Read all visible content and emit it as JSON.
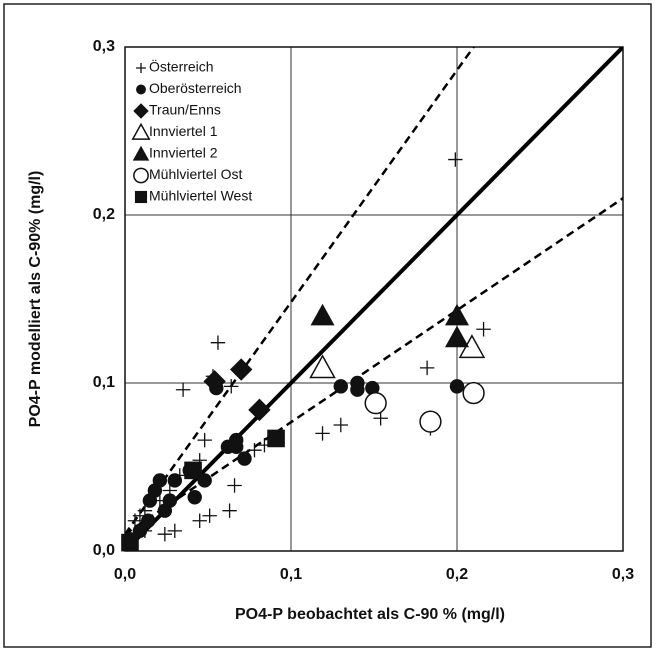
{
  "chart_data": {
    "type": "scatter",
    "x_label": "PO4-P beobachtet als C-90 % (mg/l)",
    "y_label": "PO4-P modelliert als C-90% (mg/l)",
    "xlim": [
      0,
      0.3
    ],
    "ylim": [
      0,
      0.3
    ],
    "xticks": [
      {
        "value": 0,
        "label": "0,0"
      },
      {
        "value": 0.1,
        "label": "0,1"
      },
      {
        "value": 0.2,
        "label": "0,2"
      },
      {
        "value": 0.3,
        "label": "0,3"
      }
    ],
    "yticks": [
      {
        "value": 0,
        "label": "0,0"
      },
      {
        "value": 0.1,
        "label": "0,1"
      },
      {
        "value": 0.2,
        "label": "0,2"
      },
      {
        "value": 0.3,
        "label": "0,3"
      }
    ],
    "grid": true,
    "legend": "upper left",
    "reference_lines": [
      {
        "x": [
          0,
          0.3
        ],
        "y": [
          0,
          0.3
        ],
        "style": "solid"
      },
      {
        "x": [
          0,
          0.21
        ],
        "y": [
          0.01,
          0.3
        ],
        "style": "dashed"
      },
      {
        "x": [
          0,
          0.3
        ],
        "y": [
          0.01,
          0.21
        ],
        "style": "dashed"
      }
    ],
    "series": [
      {
        "name": "Österreich",
        "marker": "plus",
        "color": "#111",
        "x": [
          0.199,
          0.216,
          0.035,
          0.056,
          0.053,
          0.064,
          0.119,
          0.13,
          0.154,
          0.182,
          0.184,
          0.006,
          0.009,
          0.012,
          0.021,
          0.027,
          0.033,
          0.012,
          0.024,
          0.03,
          0.045,
          0.051,
          0.063,
          0.066,
          0.078,
          0.081,
          0.045,
          0.048,
          0.084
        ],
        "values": [
          0.233,
          0.132,
          0.096,
          0.124,
          0.104,
          0.098,
          0.07,
          0.075,
          0.079,
          0.109,
          0.073,
          0.018,
          0.021,
          0.024,
          0.03,
          0.036,
          0.045,
          0.012,
          0.01,
          0.012,
          0.018,
          0.021,
          0.024,
          0.039,
          0.06,
          0.084,
          0.054,
          0.066,
          0.063
        ]
      },
      {
        "name": "Oberösterreich",
        "marker": "circle",
        "color": "#111",
        "x": [
          0.003,
          0.009,
          0.014,
          0.015,
          0.018,
          0.021,
          0.024,
          0.027,
          0.03,
          0.039,
          0.042,
          0.048,
          0.055,
          0.062,
          0.067,
          0.072,
          0.067,
          0.13,
          0.14,
          0.14,
          0.149,
          0.2
        ],
        "values": [
          0.007,
          0.012,
          0.018,
          0.03,
          0.036,
          0.042,
          0.024,
          0.03,
          0.042,
          0.048,
          0.032,
          0.042,
          0.097,
          0.062,
          0.062,
          0.055,
          0.066,
          0.098,
          0.1,
          0.096,
          0.097,
          0.098
        ]
      },
      {
        "name": "Traun/Enns",
        "marker": "diamond",
        "color": "#111",
        "x": [
          0.054,
          0.07,
          0.081
        ],
        "values": [
          0.101,
          0.108,
          0.084
        ]
      },
      {
        "name": "Innviertel 1",
        "marker": "triangle-open",
        "color": "#111",
        "x": [
          0.119,
          0.209
        ],
        "values": [
          0.109,
          0.121
        ]
      },
      {
        "name": "Innviertel 2",
        "marker": "triangle",
        "color": "#111",
        "x": [
          0.119,
          0.2,
          0.2
        ],
        "values": [
          0.14,
          0.14,
          0.127
        ]
      },
      {
        "name": "Mühlviertel Ost",
        "marker": "circle-open",
        "color": "#111",
        "x": [
          0.151,
          0.184,
          0.21
        ],
        "values": [
          0.088,
          0.077,
          0.094
        ]
      },
      {
        "name": "Mühlviertel West",
        "marker": "square",
        "color": "#111",
        "x": [
          0.003,
          0.041,
          0.091
        ],
        "values": [
          0.005,
          0.048,
          0.067
        ]
      }
    ]
  }
}
